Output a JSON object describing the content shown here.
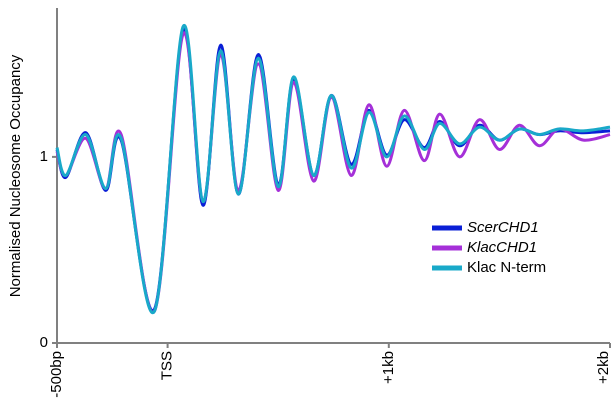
{
  "chart_data": {
    "type": "line",
    "y_label": "Normalised Nucleosome Occupancy",
    "x": [
      -500,
      -460,
      -370,
      -280,
      -210,
      -60,
      70,
      160,
      240,
      320,
      410,
      500,
      570,
      660,
      740,
      830,
      910,
      990,
      1070,
      1160,
      1230,
      1320,
      1410,
      1500,
      1590,
      1680,
      1770,
      1880,
      2000
    ],
    "series": [
      {
        "name": "ScerCHD1",
        "color": "#0a1fd6",
        "values": [
          1.04,
          0.89,
          1.13,
          0.82,
          1.09,
          0.18,
          1.68,
          0.74,
          1.6,
          0.8,
          1.55,
          0.85,
          1.42,
          0.9,
          1.33,
          0.96,
          1.25,
          1.01,
          1.2,
          1.05,
          1.19,
          1.06,
          1.17,
          1.09,
          1.15,
          1.12,
          1.14,
          1.13,
          1.14
        ]
      },
      {
        "name": "KlacCHD1",
        "color": "#a530d8",
        "values": [
          1.03,
          0.9,
          1.1,
          0.83,
          1.12,
          0.17,
          1.66,
          0.76,
          1.55,
          0.82,
          1.5,
          0.82,
          1.4,
          0.87,
          1.32,
          0.9,
          1.28,
          0.95,
          1.25,
          0.98,
          1.23,
          1.0,
          1.2,
          1.04,
          1.17,
          1.06,
          1.15,
          1.09,
          1.12
        ]
      },
      {
        "name": "Klac N-term",
        "color": "#19a9c9",
        "values": [
          1.05,
          0.9,
          1.12,
          0.83,
          1.1,
          0.17,
          1.7,
          0.76,
          1.57,
          0.8,
          1.53,
          0.84,
          1.43,
          0.9,
          1.33,
          0.94,
          1.24,
          1.0,
          1.22,
          1.04,
          1.18,
          1.07,
          1.16,
          1.09,
          1.15,
          1.12,
          1.15,
          1.14,
          1.16
        ]
      }
    ],
    "xlim": [
      -500,
      2000
    ],
    "ylim": [
      0,
      1.8
    ],
    "xticks": [
      {
        "value": -500,
        "label": "-500bp"
      },
      {
        "value": 0,
        "label": "TSS"
      },
      {
        "value": 1000,
        "label": "+1kb"
      },
      {
        "value": 2000,
        "label": "+2kb"
      }
    ],
    "yticks": [
      0,
      1
    ]
  }
}
